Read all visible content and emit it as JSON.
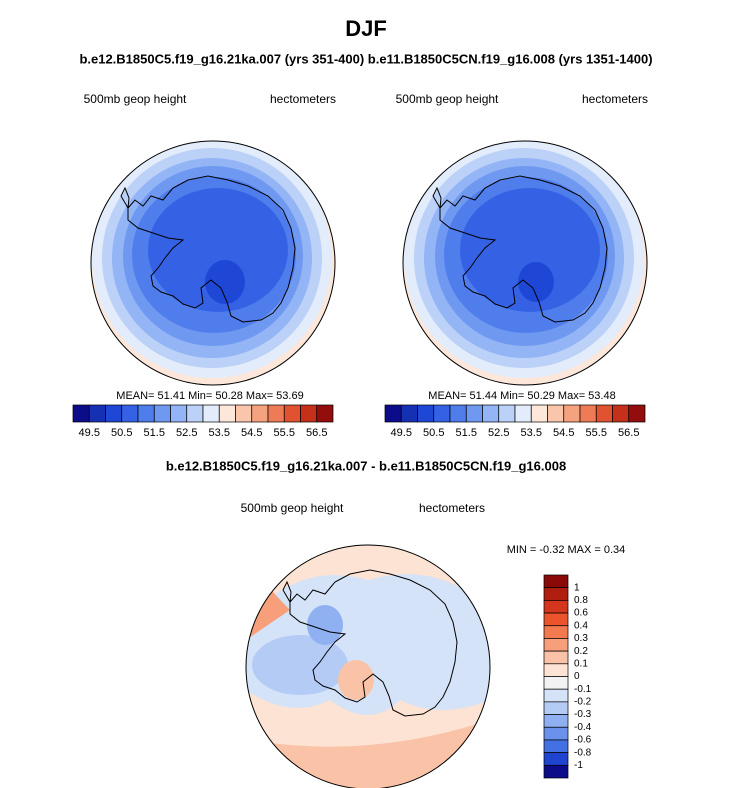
{
  "title": "DJF",
  "subtitle": "b.e12.B1850C5.f19_g16.21ka.007 (yrs 351-400) b.e11.B1850C5CN.f19_g16.008 (yrs 1351-1400)",
  "panels": [
    {
      "left_label": "500mb geop height",
      "right_label": "hectometers",
      "stats": "MEAN=  51.41  Min=  50.28  Max=  53.69"
    },
    {
      "left_label": "500mb geop height",
      "right_label": "hectometers",
      "stats": "MEAN=  51.44  Min=  50.29  Max=  53.48"
    }
  ],
  "colorbar": {
    "labels": [
      49.5,
      50.5,
      51.5,
      52.5,
      53.5,
      54.5,
      55.5,
      56.5
    ],
    "colors": [
      "#0c0c8a",
      "#1630b4",
      "#1f47d6",
      "#3562e4",
      "#4f7dec",
      "#6f98f1",
      "#93b4f5",
      "#bbd1f8",
      "#e2ecfb",
      "#fde6da",
      "#f9c6ab",
      "#f5a27f",
      "#ee7b56",
      "#e15330",
      "#c4301a",
      "#930d0d"
    ]
  },
  "diff": {
    "title": "b.e12.B1850C5.f19_g16.21ka.007 - b.e11.B1850C5CN.f19_g16.008",
    "left_label": "500mb geop height",
    "right_label": "hectometers",
    "stats": "MIN =  -0.32 MAX =   0.34",
    "colorbar": {
      "labels": [
        1,
        0.8,
        0.6,
        0.4,
        0.3,
        0.2,
        0.1,
        0,
        -0.1,
        -0.2,
        -0.3,
        -0.4,
        -0.6,
        -0.8,
        -1
      ],
      "colors": [
        "#8a0a0a",
        "#b01e10",
        "#d3361c",
        "#ec552c",
        "#f37a4e",
        "#f79f7b",
        "#fac2a6",
        "#fde3d4",
        "#f2f2f2",
        "#d5e3f8",
        "#b4cbf5",
        "#8fb0f1",
        "#6a92ec",
        "#4370e3",
        "#1f44cf",
        "#0c0c8a"
      ]
    }
  }
}
